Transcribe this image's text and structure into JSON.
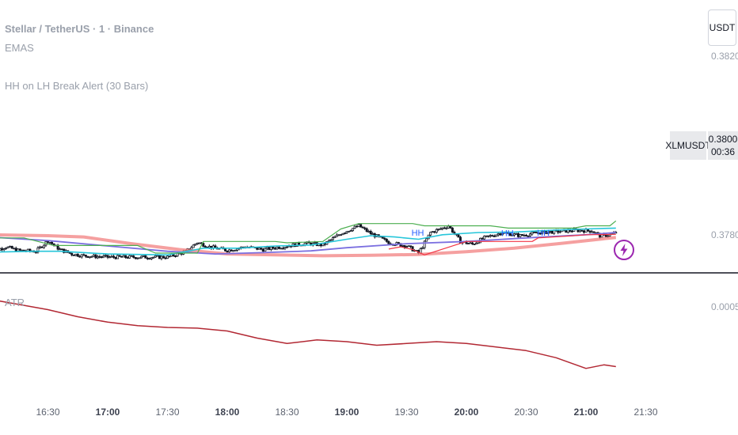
{
  "header": {
    "title": "Stellar / TetherUS · 1 · Binance",
    "indicator_1": "EMAS",
    "indicator_2": "HH on LH Break Alert (30 Bars)",
    "atr_label": "ATR"
  },
  "controls": {
    "currency": "USDT",
    "symbol": "XLMUSDT",
    "last_price": "0.3800",
    "countdown": "00:36"
  },
  "colors": {
    "candle": "#131722",
    "channel_high": "#4caf50",
    "channel_low": "#f23645",
    "ema_fast": "#26c6da",
    "ema_mid": "#7b6fe0",
    "ema_slow": "#f28080",
    "atr": "#b22833",
    "hh_label": "#2962ff",
    "bolt": "#9c27b0"
  },
  "icons": {
    "alert": "lightning-bolt-icon"
  },
  "chart_data": [
    {
      "type": "line",
      "pane": "price",
      "title": "Stellar / TetherUS · 1 · Binance",
      "x_ticks": [
        "16:30",
        "17:00",
        "17:30",
        "18:00",
        "18:30",
        "19:00",
        "19:30",
        "20:00",
        "20:30",
        "21:00",
        "21:30"
      ],
      "x_ticks_major": [
        "17:00",
        "18:00",
        "19:00",
        "20:00",
        "21:00"
      ],
      "y_ticks": [
        "0.3820",
        "0.3780"
      ],
      "last_price": 0.38,
      "series": [
        {
          "values": [
            [
              16.0,
              0.37755
            ],
            [
              16.15,
              0.37768
            ],
            [
              16.25,
              0.3776
            ],
            [
              16.4,
              0.37758
            ],
            [
              16.5,
              0.37782
            ],
            [
              16.6,
              0.37762
            ],
            [
              16.7,
              0.37752
            ],
            [
              16.8,
              0.37748
            ],
            [
              17.0,
              0.37745
            ],
            [
              17.3,
              0.37745
            ],
            [
              17.5,
              0.37745
            ],
            [
              17.65,
              0.37757
            ],
            [
              17.75,
              0.37778
            ],
            [
              17.85,
              0.37768
            ],
            [
              18.0,
              0.3776
            ],
            [
              18.15,
              0.37768
            ],
            [
              18.3,
              0.37762
            ],
            [
              18.5,
              0.3777
            ],
            [
              18.65,
              0.37776
            ],
            [
              18.8,
              0.37772
            ],
            [
              18.95,
              0.37798
            ],
            [
              19.1,
              0.37815
            ],
            [
              19.2,
              0.37798
            ],
            [
              19.35,
              0.37778
            ],
            [
              19.5,
              0.3777
            ],
            [
              19.6,
              0.37754
            ],
            [
              19.7,
              0.378
            ],
            [
              19.85,
              0.37815
            ],
            [
              19.95,
              0.3778
            ],
            [
              20.05,
              0.37774
            ],
            [
              20.15,
              0.37788
            ],
            [
              20.3,
              0.378
            ],
            [
              20.45,
              0.37793
            ],
            [
              20.6,
              0.378
            ],
            [
              20.75,
              0.37802
            ],
            [
              20.9,
              0.37805
            ],
            [
              21.05,
              0.37804
            ],
            [
              21.12,
              0.37792
            ],
            [
              21.2,
              0.37795
            ],
            [
              21.25,
              0.378
            ]
          ]
        },
        {
          "values": [
            [
              16.0,
              0.37788
            ],
            [
              16.3,
              0.37788
            ],
            [
              16.55,
              0.37771
            ],
            [
              17.0,
              0.37771
            ],
            [
              17.25,
              0.37771
            ],
            [
              17.4,
              0.37754
            ],
            [
              17.75,
              0.37754
            ],
            [
              17.8,
              0.3778
            ],
            [
              18.4,
              0.3778
            ],
            [
              18.5,
              0.37777
            ],
            [
              18.8,
              0.3778
            ],
            [
              18.95,
              0.37808
            ],
            [
              19.1,
              0.3782
            ],
            [
              19.55,
              0.3782
            ],
            [
              19.65,
              0.37815
            ],
            [
              20.2,
              0.37815
            ],
            [
              20.35,
              0.3781
            ],
            [
              20.9,
              0.3781
            ],
            [
              21.0,
              0.37815
            ],
            [
              21.2,
              0.37815
            ],
            [
              21.25,
              0.37826
            ]
          ]
        },
        {
          "values": [
            [
              19.35,
              0.37763
            ],
            [
              19.45,
              0.37768
            ],
            [
              19.55,
              0.37762
            ],
            [
              19.65,
              0.3775
            ],
            [
              20.0,
              0.3778
            ],
            [
              20.55,
              0.3778
            ],
            [
              20.6,
              0.37788
            ],
            [
              20.9,
              0.37793
            ],
            [
              21.0,
              0.37795
            ],
            [
              21.25,
              0.37796
            ]
          ]
        },
        {
          "values": [
            [
              16.0,
              0.37756
            ],
            [
              16.4,
              0.37758
            ],
            [
              16.6,
              0.37758
            ],
            [
              17.0,
              0.37752
            ],
            [
              17.5,
              0.3775
            ],
            [
              17.8,
              0.37765
            ],
            [
              18.1,
              0.37765
            ],
            [
              18.4,
              0.3777
            ],
            [
              18.7,
              0.37772
            ],
            [
              19.0,
              0.37785
            ],
            [
              19.2,
              0.37793
            ],
            [
              19.4,
              0.3779
            ],
            [
              19.6,
              0.37785
            ],
            [
              19.8,
              0.37795
            ],
            [
              20.1,
              0.378
            ],
            [
              20.4,
              0.37801
            ],
            [
              20.7,
              0.37805
            ],
            [
              21.0,
              0.37808
            ],
            [
              21.25,
              0.3781
            ]
          ]
        },
        {
          "values": [
            [
              16.0,
              0.3779
            ],
            [
              16.5,
              0.37782
            ],
            [
              17.0,
              0.3777
            ],
            [
              17.5,
              0.37758
            ],
            [
              17.9,
              0.37752
            ],
            [
              18.3,
              0.37755
            ],
            [
              18.7,
              0.37759
            ],
            [
              19.0,
              0.37766
            ],
            [
              19.5,
              0.37775
            ],
            [
              20.0,
              0.3778
            ],
            [
              20.5,
              0.37788
            ],
            [
              21.0,
              0.37795
            ],
            [
              21.25,
              0.378
            ]
          ]
        },
        {
          "values": [
            [
              16.0,
              0.37795
            ],
            [
              16.5,
              0.37793
            ],
            [
              16.8,
              0.3779
            ],
            [
              17.2,
              0.37775
            ],
            [
              17.6,
              0.37762
            ],
            [
              18.0,
              0.37752
            ],
            [
              18.4,
              0.3775
            ],
            [
              18.8,
              0.37748
            ],
            [
              19.2,
              0.37749
            ],
            [
              19.6,
              0.37751
            ],
            [
              20.0,
              0.37757
            ],
            [
              20.4,
              0.37765
            ],
            [
              20.8,
              0.37776
            ],
            [
              21.25,
              0.37789
            ]
          ]
        }
      ],
      "hh_labels": [
        [
          19.6,
          0.378
        ],
        [
          20.35,
          0.37799
        ],
        [
          20.65,
          0.378
        ]
      ]
    },
    {
      "type": "line",
      "pane": "indicator",
      "label": "ATR",
      "y_ticks": [
        "0.0005"
      ],
      "values": [
        [
          16.0,
          0.00052
        ],
        [
          16.25,
          0.000505
        ],
        [
          16.5,
          0.00049
        ],
        [
          16.75,
          0.00047
        ],
        [
          17.0,
          0.000455
        ],
        [
          17.25,
          0.000445
        ],
        [
          17.5,
          0.00044
        ],
        [
          17.75,
          0.000438
        ],
        [
          18.0,
          0.00043
        ],
        [
          18.25,
          0.00041
        ],
        [
          18.5,
          0.000395
        ],
        [
          18.75,
          0.000405
        ],
        [
          19.0,
          0.0004
        ],
        [
          19.25,
          0.00039
        ],
        [
          19.5,
          0.000395
        ],
        [
          19.75,
          0.0004
        ],
        [
          20.0,
          0.000395
        ],
        [
          20.25,
          0.000385
        ],
        [
          20.5,
          0.000375
        ],
        [
          20.75,
          0.000355
        ],
        [
          21.0,
          0.000325
        ],
        [
          21.15,
          0.000335
        ],
        [
          21.25,
          0.00033
        ]
      ]
    }
  ]
}
